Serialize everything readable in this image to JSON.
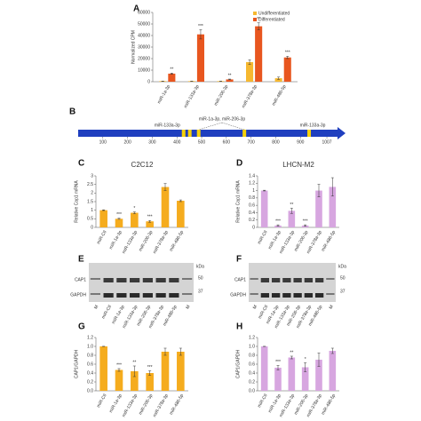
{
  "chart_data": [
    {
      "type": "bar",
      "panel": "A",
      "ylabel": "Normalized CPM",
      "categories": [
        "miR-1a-3p",
        "miR-133a-3p",
        "miR-206-3p",
        "miR-378a-3p",
        "miR-486-5p"
      ],
      "series": [
        {
          "name": "Undifferentiated",
          "color": "#f6b830",
          "values": [
            500,
            500,
            500,
            17000,
            3000
          ],
          "errors": [
            100,
            100,
            100,
            2000,
            1000
          ]
        },
        {
          "name": "Differentiated",
          "color": "#e8561f",
          "values": [
            7000,
            41000,
            2000,
            48000,
            21000
          ],
          "errors": [
            500,
            4000,
            300,
            3000,
            1000
          ]
        }
      ],
      "annotations": [
        "**",
        "***",
        "**",
        "**",
        "***"
      ],
      "ylim": [
        0,
        60000
      ],
      "yticks": [
        0,
        10000,
        20000,
        30000,
        40000,
        50000,
        60000
      ],
      "legend": "upper right"
    },
    {
      "type": "bar",
      "panel": "C",
      "title": "C2C12",
      "ylabel": "Relative  Cap1 mRNA",
      "color": "#f5ac1e",
      "categories": [
        "miR-Ctl",
        "miR-1a-3p",
        "miR-133a-3p",
        "miR-206-3p",
        "miR-378a-3p",
        "miR-486-5p"
      ],
      "values": [
        1.0,
        0.5,
        0.85,
        0.35,
        2.35,
        1.55
      ],
      "errors": [
        0.02,
        0.03,
        0.05,
        0.05,
        0.2,
        0.05
      ],
      "annotations": [
        null,
        "***",
        "*",
        "***",
        null,
        null
      ],
      "ylim": [
        0,
        3
      ],
      "yticks": [
        0,
        0.5,
        1,
        1.5,
        2,
        2.5,
        3
      ]
    },
    {
      "type": "bar",
      "panel": "D",
      "title": "LHCN-M2",
      "ylabel": "Relative  Cap1 mRNA",
      "color": "#d7a6e0",
      "categories": [
        "miR-Ctl",
        "miR-1a-3p",
        "miR-133a-3p",
        "miR-206-3p",
        "miR-378a-3p",
        "miR-486-5p"
      ],
      "values": [
        1.0,
        0.05,
        0.45,
        0.05,
        1.0,
        1.1
      ],
      "errors": [
        0.01,
        0.02,
        0.07,
        0.02,
        0.17,
        0.25
      ],
      "annotations": [
        null,
        "***",
        "**",
        "***",
        null,
        null
      ],
      "ylim": [
        0,
        1.4
      ],
      "yticks": [
        0,
        0.2,
        0.4,
        0.6,
        0.8,
        1,
        1.2,
        1.4
      ]
    },
    {
      "type": "bar",
      "panel": "G",
      "ylabel": "CAP1/GAPDH",
      "color": "#f5ac1e",
      "categories": [
        "miR-Ctl",
        "miR-1a-3p",
        "miR-133a-3p",
        "miR-206-3p",
        "miR-378a-3p",
        "miR-486-5p"
      ],
      "values": [
        1.0,
        0.47,
        0.44,
        0.4,
        0.88,
        0.88
      ],
      "errors": [
        0.0,
        0.03,
        0.12,
        0.05,
        0.08,
        0.08
      ],
      "annotations": [
        null,
        "***",
        "**",
        "***",
        null,
        null
      ],
      "ylim": [
        0,
        1.2
      ],
      "yticks": [
        {
          "value": 0,
          "label": "0.0"
        },
        0.2,
        0.4,
        0.6,
        0.8,
        {
          "value": 1,
          "label": "1.0"
        },
        1.2
      ]
    },
    {
      "type": "bar",
      "panel": "H",
      "ylabel": "CAP1/GAPDH",
      "color": "#d7a6e0",
      "categories": [
        "miR-Ctl",
        "miR-1a-3p",
        "miR-133a-3p",
        "miR-206-3p",
        "miR-378a-3p",
        "miR-486-5p"
      ],
      "values": [
        1.0,
        0.52,
        0.75,
        0.53,
        0.7,
        0.9
      ],
      "errors": [
        0.0,
        0.05,
        0.03,
        0.1,
        0.15,
        0.06
      ],
      "annotations": [
        null,
        "***",
        "**",
        "*",
        null,
        null
      ],
      "ylim": [
        0,
        1.2
      ],
      "yticks": [
        {
          "value": 0,
          "label": "0.0"
        },
        0.2,
        0.4,
        0.6,
        0.8,
        {
          "value": 1,
          "label": "1.0"
        },
        1.2
      ]
    }
  ],
  "diagram": {
    "panel": "B",
    "xlim": [
      0,
      1050
    ],
    "ticks": [
      100,
      200,
      300,
      400,
      500,
      600,
      700,
      800,
      900,
      1007
    ],
    "sites": [
      427,
      452,
      488,
      673,
      935
    ],
    "labels": [
      "miR-133a-3p",
      "miR-1a-3p, miR-206-3p",
      "miR-133a-3p"
    ]
  },
  "blots": [
    {
      "panel": "E",
      "rows": [
        "CAP1",
        "GAPDH"
      ],
      "unit": "kDa",
      "markers": [
        "50",
        "37"
      ],
      "lanes": [
        "M",
        "miR-Ctl",
        "miR-1a-3p",
        "miR-133a-3p",
        "miR-206-3p",
        "miR-378a-3p",
        "miR-486-5p",
        "M"
      ]
    },
    {
      "panel": "F",
      "rows": [
        "CAP1",
        "GAPDH"
      ],
      "unit": "kDa",
      "markers": [
        "50",
        "37"
      ],
      "lanes": [
        "M",
        "miR-Ctl",
        "miR-1a-3p",
        "miR-133a-3p",
        "miR-206-3p",
        "miR-378a-3p",
        "miR-486-5p",
        "M"
      ]
    }
  ]
}
